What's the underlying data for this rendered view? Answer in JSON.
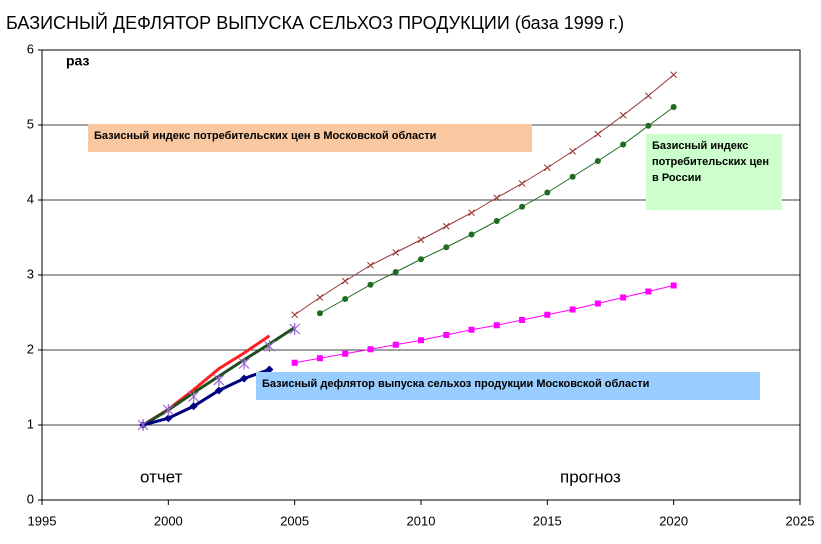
{
  "chart_data": {
    "type": "line",
    "title": "БАЗИСНЫЙ ДЕФЛЯТОР ВЫПУСКА СЕЛЬХОЗ ПРОДУКЦИИ  (база 1999 г.)",
    "y_label": "раз",
    "annotations": [
      "Базисный индекс потребительских цен в Московской области",
      "Базисный индекс потребительских цен в России",
      "Базисный дефлятор выпуска сельхоз продукции Московской области",
      "отчет",
      "прогноз"
    ],
    "xlim": [
      1995,
      2025
    ],
    "xticks": [
      1995,
      2000,
      2005,
      2010,
      2015,
      2020,
      2025
    ],
    "ylim": [
      0,
      6
    ],
    "yticks": [
      0,
      1,
      2,
      3,
      4,
      5,
      6
    ],
    "grid": true,
    "series": [
      {
        "color": "#993333",
        "marker": "x",
        "width": 1,
        "x": [
          2005,
          2006,
          2007,
          2008,
          2009,
          2010,
          2011,
          2012,
          2013,
          2014,
          2015,
          2016,
          2017,
          2018,
          2019,
          2020
        ],
        "values": [
          2.47,
          2.7,
          2.92,
          3.13,
          3.3,
          3.47,
          3.65,
          3.83,
          4.03,
          4.22,
          4.43,
          4.65,
          4.88,
          5.13,
          5.39,
          5.67
        ]
      },
      {
        "color": "#1f6b1f",
        "marker": "circle",
        "width": 1,
        "x": [
          2006,
          2007,
          2008,
          2009,
          2010,
          2011,
          2012,
          2013,
          2014,
          2015,
          2016,
          2017,
          2018,
          2019,
          2020
        ],
        "values": [
          2.49,
          2.68,
          2.87,
          3.04,
          3.21,
          3.37,
          3.54,
          3.72,
          3.91,
          4.1,
          4.31,
          4.52,
          4.74,
          4.99,
          5.24
        ]
      },
      {
        "color": "#ff00ff",
        "marker": "square",
        "width": 1,
        "x": [
          2005,
          2006,
          2007,
          2008,
          2009,
          2010,
          2011,
          2012,
          2013,
          2014,
          2015,
          2016,
          2017,
          2018,
          2019,
          2020
        ],
        "values": [
          1.83,
          1.89,
          1.95,
          2.01,
          2.07,
          2.13,
          2.2,
          2.27,
          2.33,
          2.4,
          2.47,
          2.54,
          2.62,
          2.7,
          2.78,
          2.86
        ]
      },
      {
        "color": "#ff2020",
        "marker": "none",
        "width": 3,
        "x": [
          1999,
          2000,
          2001,
          2002,
          2003,
          2004
        ],
        "values": [
          1.0,
          1.21,
          1.47,
          1.75,
          1.96,
          2.19
        ]
      },
      {
        "color": "#1f4f1f",
        "marker": "none",
        "width": 3,
        "x": [
          1999,
          2000,
          2001,
          2002,
          2003,
          2004,
          2005
        ],
        "values": [
          1.0,
          1.2,
          1.43,
          1.65,
          1.87,
          2.08,
          2.3
        ]
      },
      {
        "color": "#000080",
        "marker": "diamond",
        "width": 3,
        "x": [
          1999,
          2000,
          2001,
          2002,
          2003,
          2004
        ],
        "values": [
          1.0,
          1.09,
          1.25,
          1.46,
          1.62,
          1.74
        ]
      },
      {
        "color": "#9966cc",
        "marker": "star",
        "width": 0,
        "x": [
          1999,
          2000,
          2001,
          2002,
          2003,
          2004,
          2005
        ],
        "values": [
          1.0,
          1.2,
          1.38,
          1.6,
          1.82,
          2.05,
          2.28
        ]
      }
    ]
  }
}
